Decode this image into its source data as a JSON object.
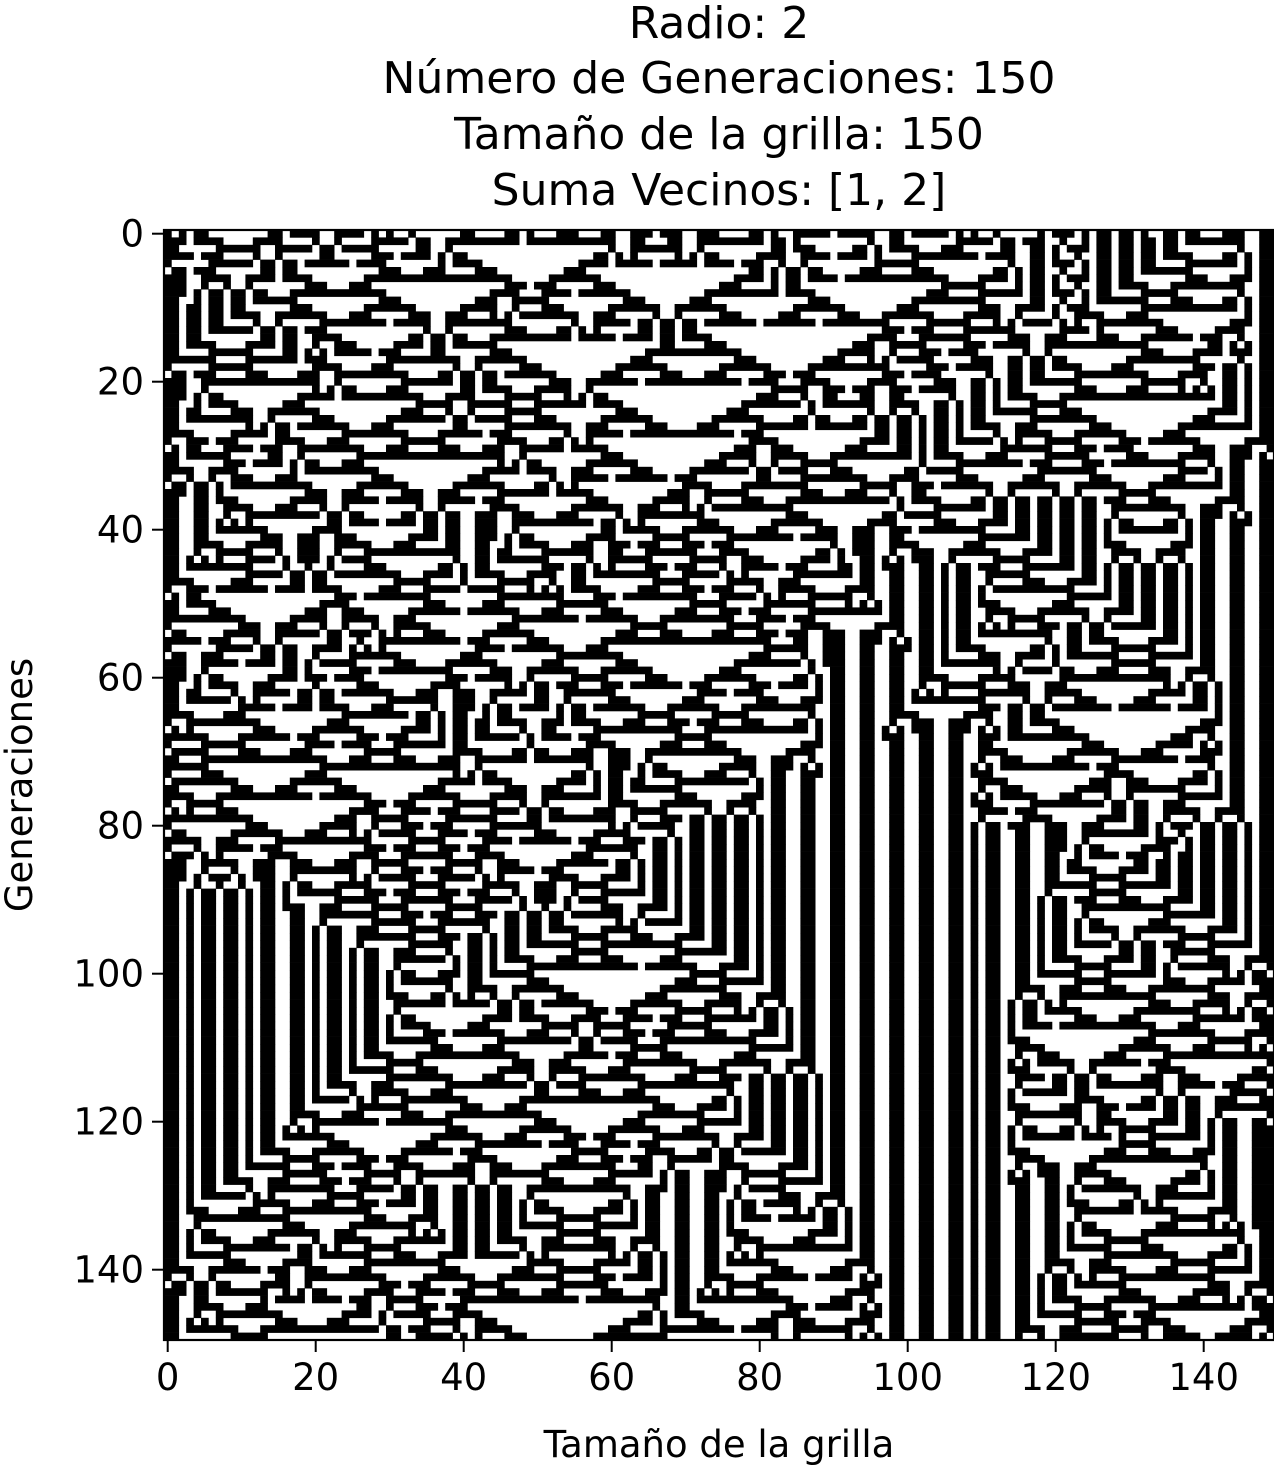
{
  "chart_data": {
    "type": "heatmap",
    "title_lines": [
      "Radio: 2",
      "Número de Generaciones: 150",
      "Tamaño de la grilla: 150",
      "Suma Vecinos: [1, 2]"
    ],
    "xlabel": "Tamaño de la grilla",
    "ylabel": "Generaciones",
    "xlim": [
      0,
      150
    ],
    "ylim": [
      150,
      0
    ],
    "xticks": [
      "0",
      "20",
      "40",
      "60",
      "80",
      "100",
      "120",
      "140"
    ],
    "yticks": [
      "0",
      "20",
      "40",
      "60",
      "80",
      "100",
      "120",
      "140"
    ],
    "grid": false,
    "legend": "none",
    "colormap": {
      "alive": "#000000",
      "dead": "#ffffff"
    },
    "radius": 2,
    "generations": 150,
    "grid_size": 150,
    "neighbor_sums": [
      1,
      2
    ],
    "cell_values": "binary 150x150 cellular automaton evolution (rows = generations, columns = cells)"
  }
}
